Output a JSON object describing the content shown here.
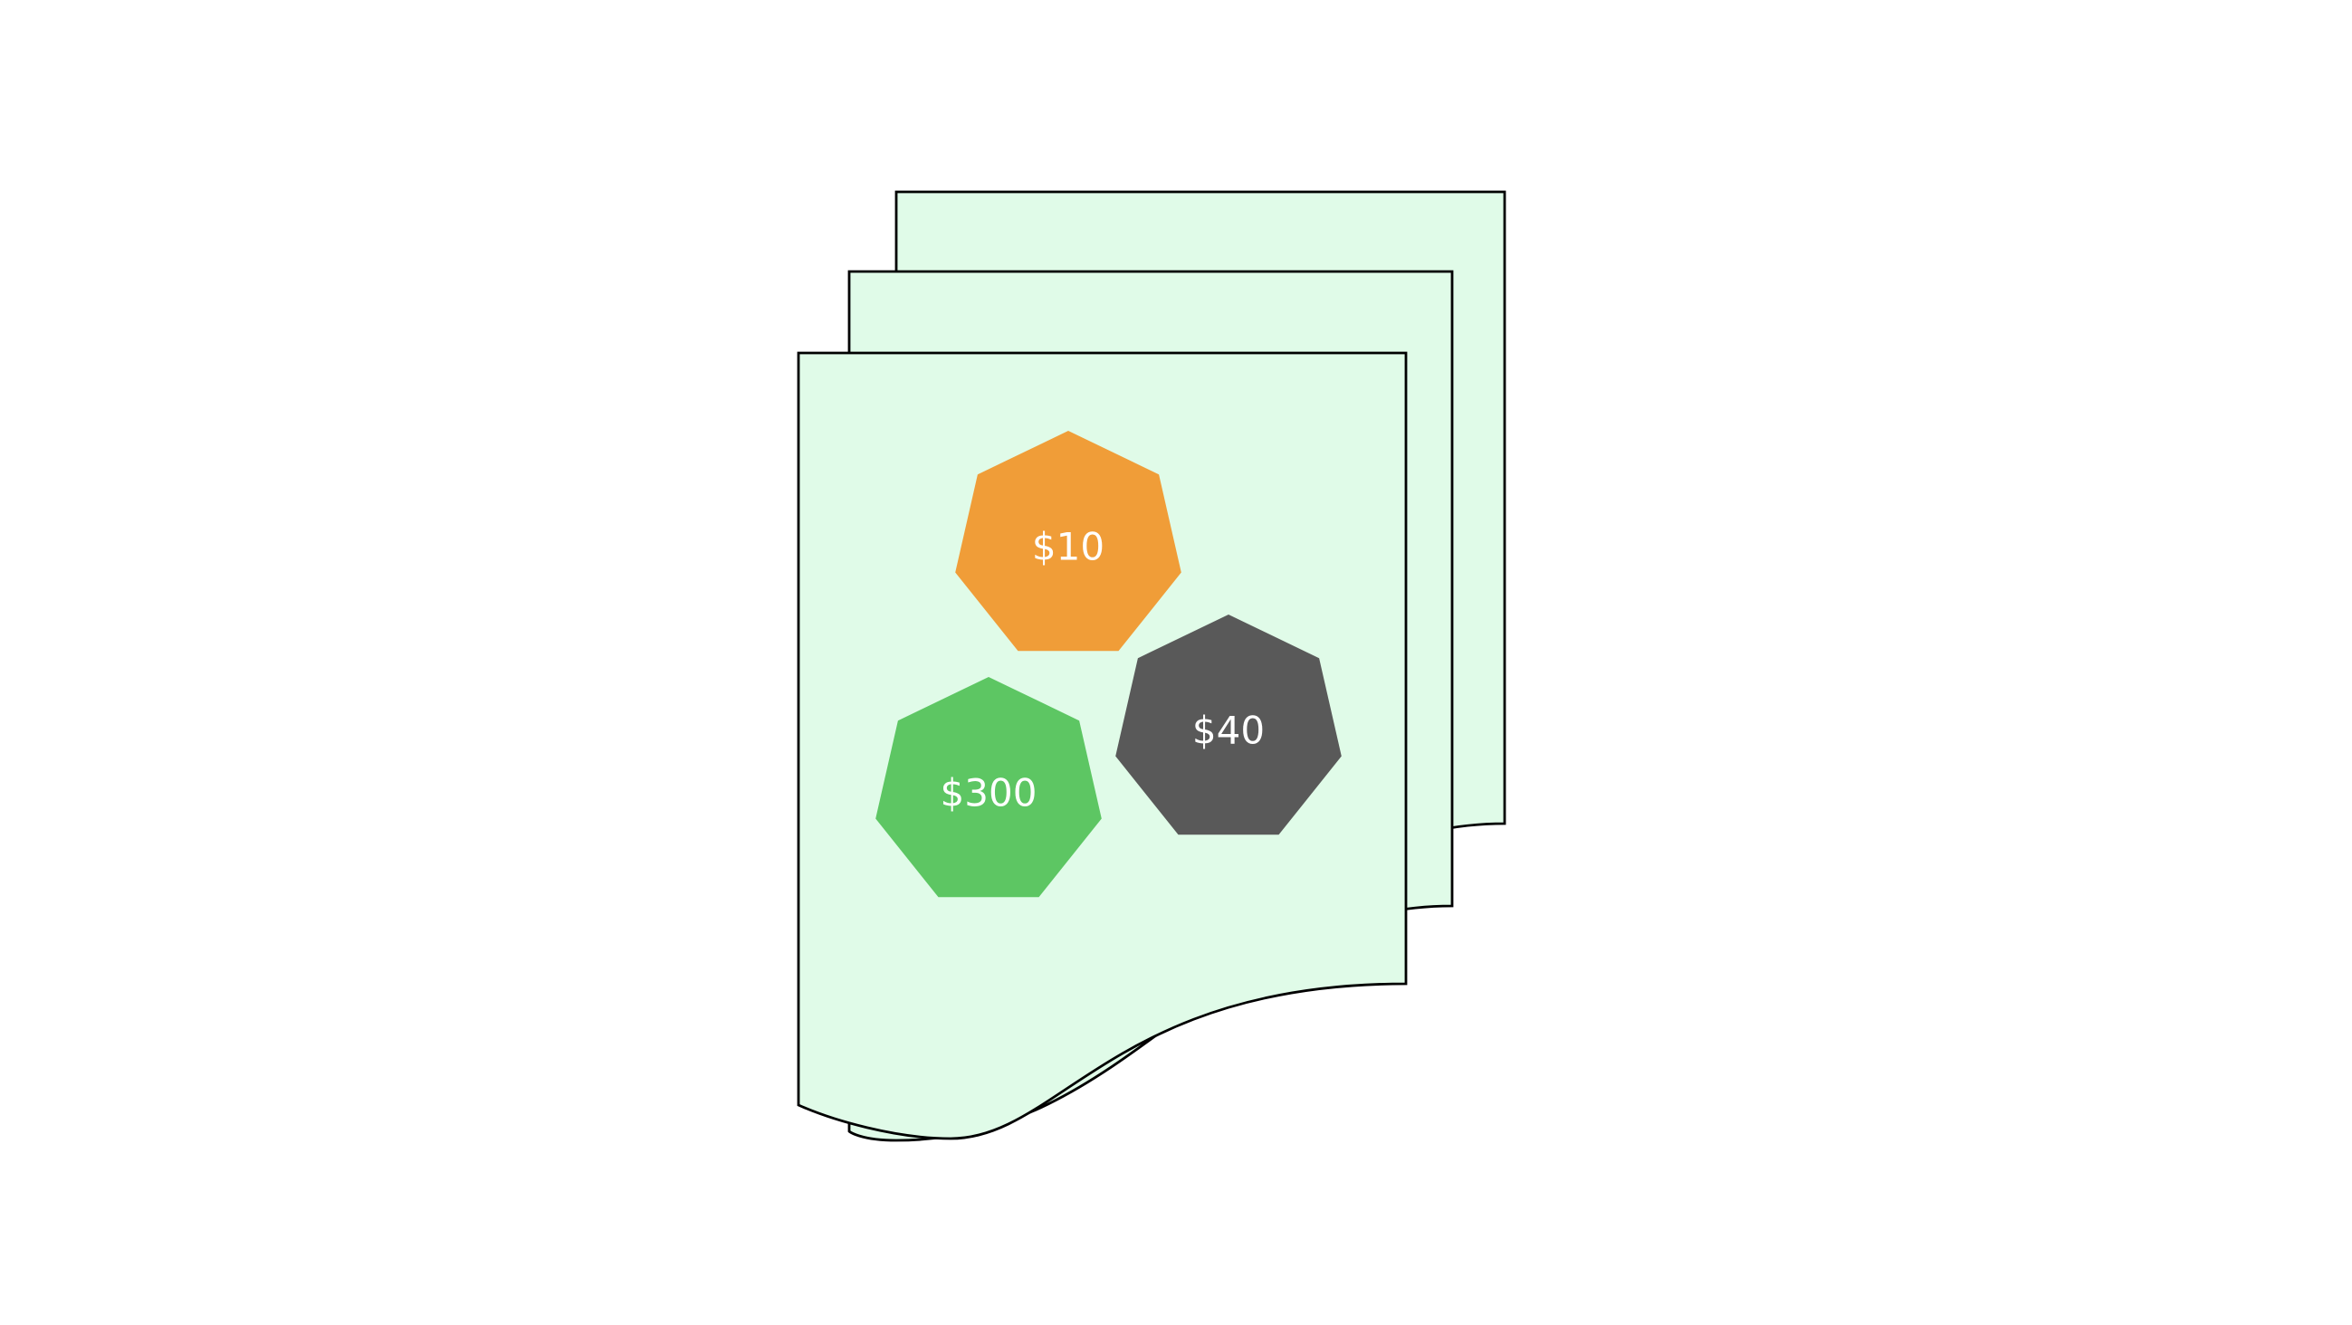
{
  "colors": {
    "background": "#ffffff",
    "sheet_fill": "#e0fbe8",
    "sheet_stroke": "#000000",
    "label_text": "#ffffff"
  },
  "documents": {
    "count": 3
  },
  "coins": [
    {
      "label": "$10",
      "color": "#f09d38",
      "shape": "heptagon"
    },
    {
      "label": "$40",
      "color": "#595959",
      "shape": "heptagon"
    },
    {
      "label": "$300",
      "color": "#5dc663",
      "shape": "heptagon"
    }
  ]
}
